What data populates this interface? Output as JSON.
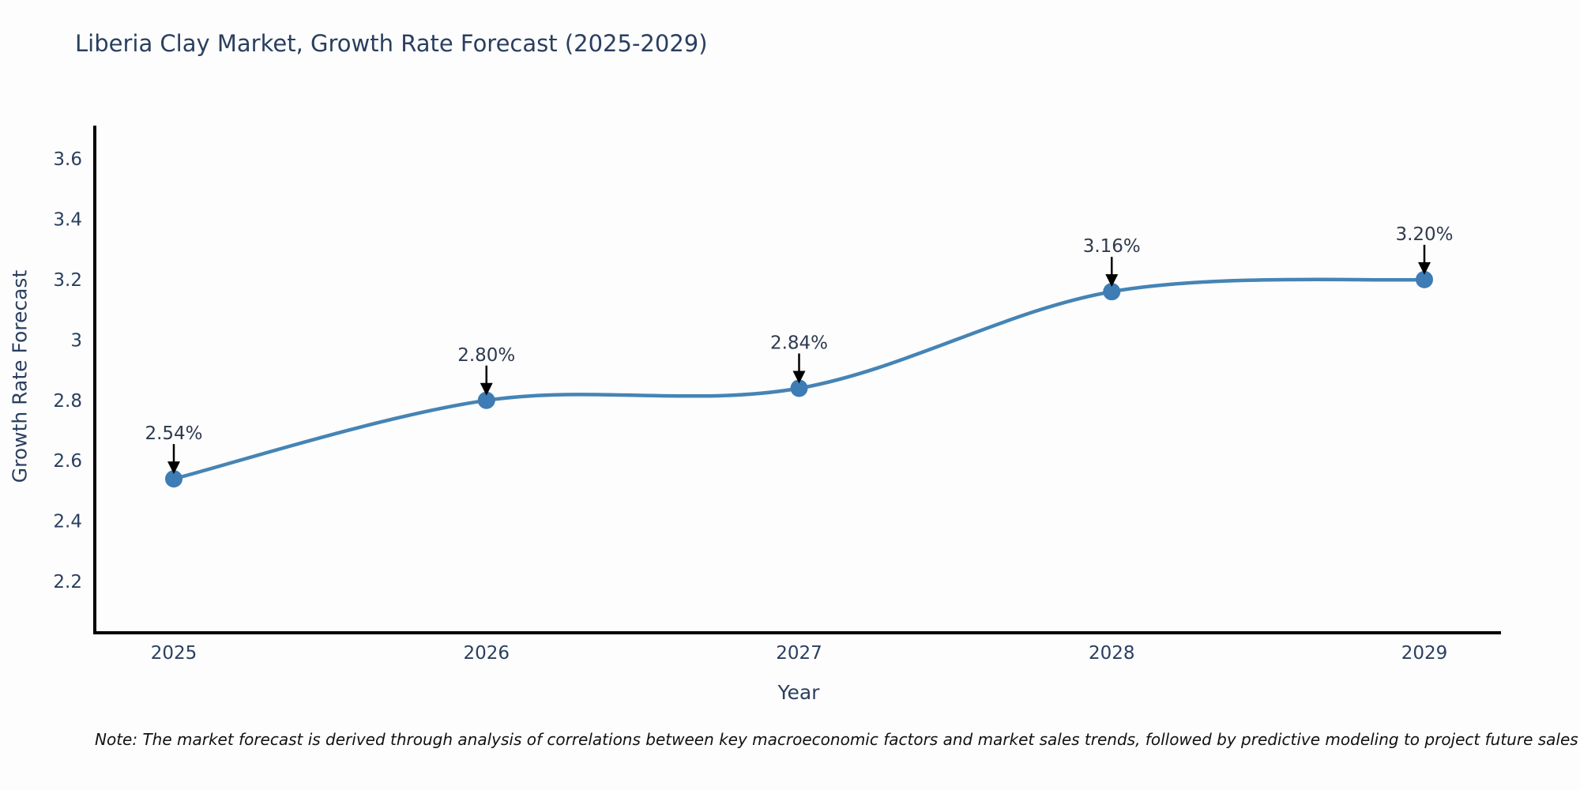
{
  "title": "Liberia Clay Market, Growth Rate Forecast (2025-2029)",
  "chart_data": {
    "type": "line",
    "line_shape": "spline",
    "title": "Liberia Clay Market, Growth Rate Forecast (2025-2029)",
    "xlabel": "Year",
    "ylabel": "Growth Rate Forecast",
    "x": [
      2025,
      2026,
      2027,
      2028,
      2029
    ],
    "xtick_labels": [
      "2025",
      "2026",
      "2027",
      "2028",
      "2029"
    ],
    "series": [
      {
        "name": "Growth Rate Forecast",
        "values": [
          2.54,
          2.8,
          2.84,
          3.16,
          3.2
        ]
      }
    ],
    "point_labels": [
      "2.54%",
      "2.80%",
      "2.84%",
      "3.16%",
      "3.20%"
    ],
    "ytick_values": [
      3.6,
      3.4,
      3.2,
      3.0,
      2.8,
      2.6,
      2.4,
      2.2
    ],
    "ytick_labels": [
      "3.6",
      "3.4",
      "3.2",
      "3",
      "2.8",
      "2.6",
      "2.4",
      "2.2"
    ],
    "ylim": [
      2.03,
      3.71
    ],
    "grid": false,
    "legend_position": "none",
    "annotations_have_arrows": true,
    "colors": {
      "line": "#4584b5",
      "marker": "#3d7cb4",
      "axis": "#000000",
      "tick_text": "#2a3f5f",
      "annotation_text": "#2e3a4e",
      "annotation_arrow": "#000000",
      "title_text": "#2a3f5f",
      "background": "#fdfdfd"
    }
  },
  "note": {
    "text": "Note: The market forecast is derived through analysis of correlations between key macroeconomic factors and market sales trends, followed by predictive modeling to project future sales"
  }
}
